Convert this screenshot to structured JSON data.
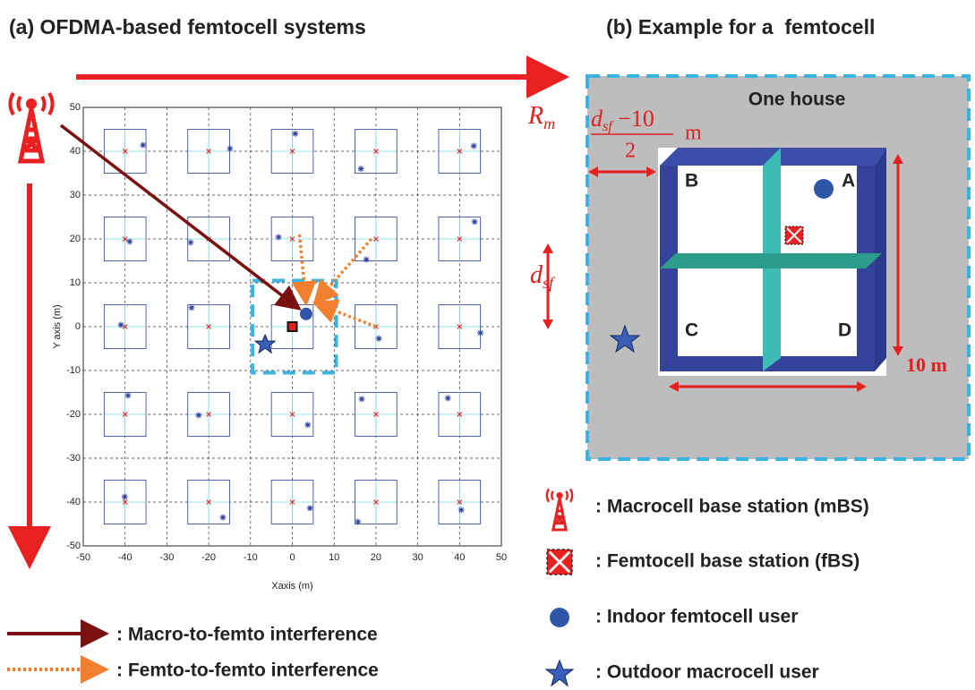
{
  "panel_a": {
    "title": "(a) OFDMA-based femtocell systems",
    "chart": {
      "x_label": "Xaxis (m)",
      "y_label": "Y axis (m)",
      "xlim": [
        -50,
        50
      ],
      "ylim": [
        -50,
        50
      ],
      "xticks": [
        -50,
        -40,
        -30,
        -20,
        -10,
        0,
        10,
        20,
        30,
        40,
        50
      ],
      "yticks": [
        -50,
        -40,
        -30,
        -20,
        -10,
        0,
        10,
        20,
        30,
        40,
        50
      ],
      "grid": true,
      "femtocell_centers": [
        -40,
        -20,
        0,
        20,
        40
      ],
      "house_size": 10,
      "outdoor_users": {
        "x": [
          -35.7,
          -14.9,
          0.7,
          16.4,
          43.4,
          -38.9,
          -24.3,
          -3.3,
          17.7,
          43.6,
          -41,
          -24.1,
          20.7,
          45,
          -39.3,
          -22.4,
          3.7,
          16.6,
          37.2,
          -40.1,
          -16.6,
          4.2,
          15.7,
          40.4
        ],
        "y": [
          41.4,
          40.6,
          44,
          36,
          41.2,
          19.4,
          19.2,
          20.4,
          15.3,
          23.9,
          0.4,
          4.3,
          -2.7,
          -1.4,
          -15.7,
          -20.2,
          -22.4,
          -16.5,
          -16.3,
          -38.8,
          -43.5,
          -41.4,
          -44.5,
          -41.8
        ]
      },
      "highlighted_outdoor_user": {
        "x": -6.5,
        "y": -3.7
      },
      "indoor_user": {
        "x": 3.3,
        "y": 2.9
      }
    },
    "rm_label": "R",
    "rm_sub": "m",
    "dsf_label": "d",
    "dsf_sub": "sf"
  },
  "panel_b": {
    "title": "(b) Example for a  femtocell",
    "house_label": "One house",
    "rooms": [
      "B",
      "A",
      "C",
      "D"
    ],
    "size_label": "10 m",
    "offset_label": {
      "var": "d",
      "var_sub": "sf",
      "rest": " −10",
      "denominator": "2",
      "unit": "m"
    }
  },
  "legend": {
    "macro_to_femto": ": Macro-to-femto interference",
    "femto_to_femto": ": Femto-to-femto interference",
    "mbs": ": Macrocell base station (mBS)",
    "fbs": ": Femtocell base station (fBS)",
    "indoor_user": ": Indoor femtocell user",
    "outdoor_user": ": Outdoor macrocell user"
  }
}
